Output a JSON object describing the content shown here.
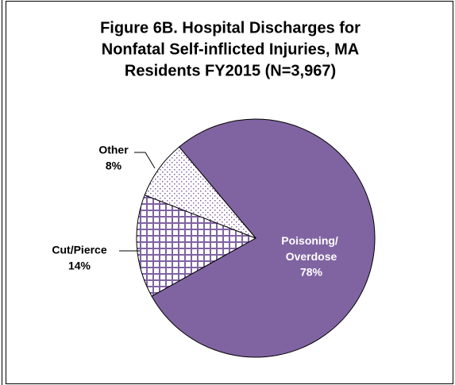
{
  "chart_data": {
    "type": "pie",
    "title": [
      "Figure 6B. Hospital Discharges for",
      "Nonfatal Self-inflicted Injuries, MA",
      "Residents FY2015 (N=3,967)"
    ],
    "categories": [
      "Poisoning/ Overdose",
      "Cut/Pierce",
      "Other"
    ],
    "values": [
      78,
      14,
      8
    ],
    "value_labels": [
      "78%",
      "14%",
      "8%"
    ],
    "colors": [
      "#8064a2",
      "#8064a2",
      "#8064a2"
    ],
    "patterns": [
      "solid",
      "grid",
      "dots"
    ]
  }
}
